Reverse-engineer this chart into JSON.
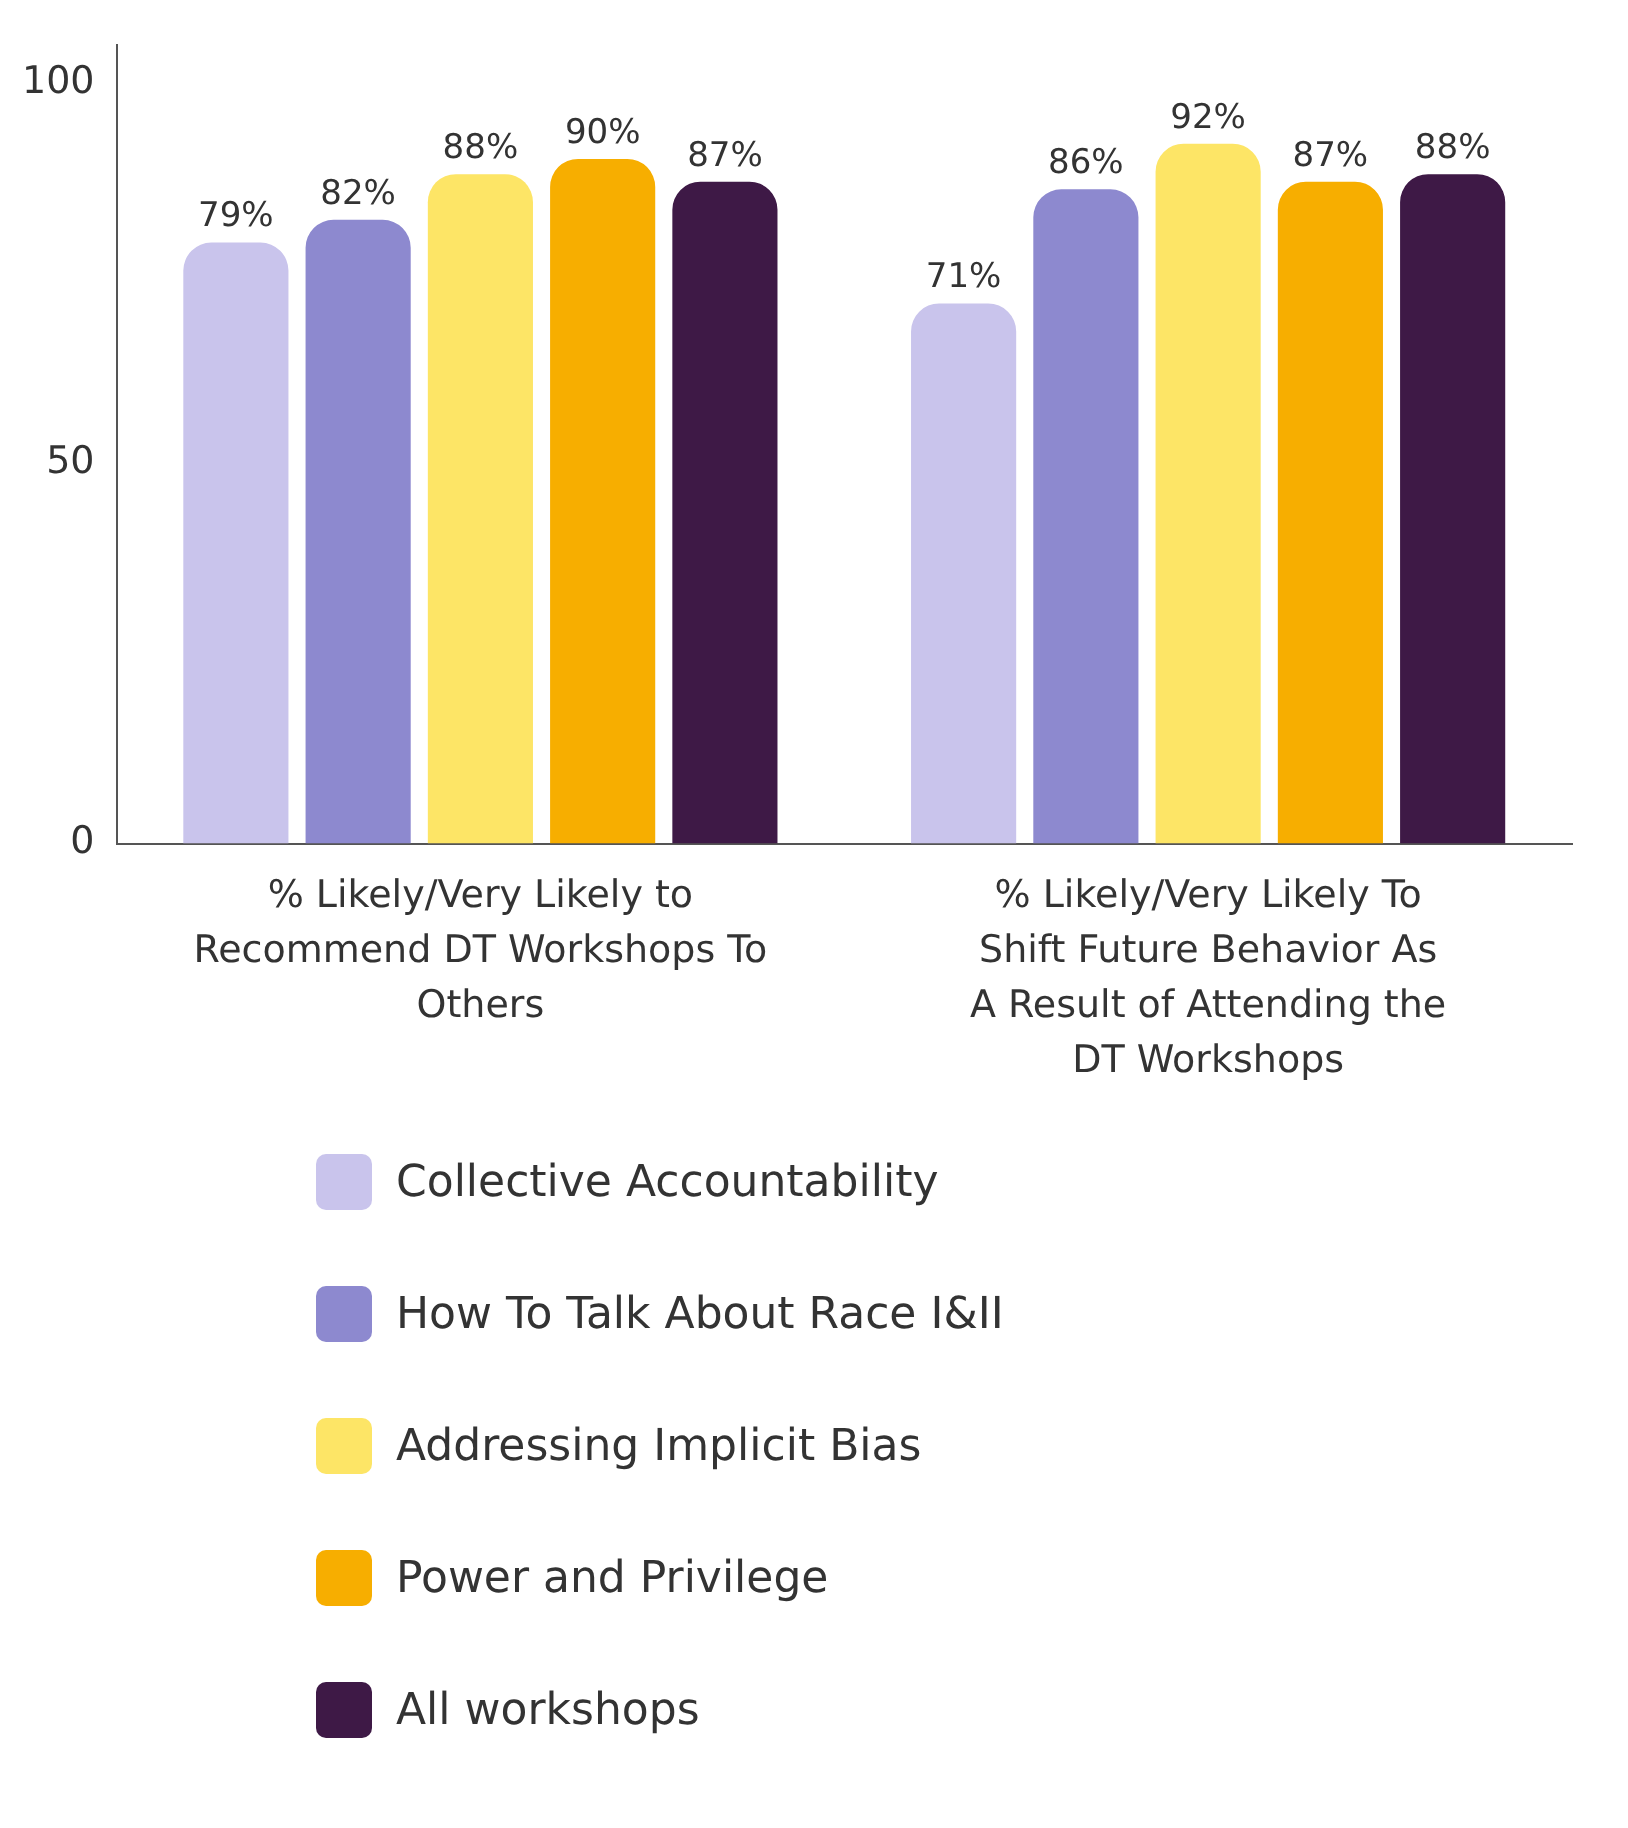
{
  "chart_data": {
    "type": "bar",
    "categories": [
      "% Likely/Very Likely to Recommend DT Workshops To Others",
      "% Likely/Very Likely To Shift Future Behavior As A Result of Attending the DT Workshops"
    ],
    "series": [
      {
        "name": "Collective Accountability",
        "color": "#c9c4ec",
        "values": [
          79,
          71
        ],
        "value_labels": [
          "79%",
          "71%"
        ]
      },
      {
        "name": "How To Talk About Race I&II",
        "color": "#8d89cf",
        "values": [
          82,
          86
        ],
        "value_labels": [
          "82%",
          "86%"
        ]
      },
      {
        "name": "Addressing Implicit Bias",
        "color": "#fde566",
        "values": [
          88,
          92
        ],
        "value_labels": [
          "88%",
          "92%"
        ]
      },
      {
        "name": "Power and Privilege",
        "color": "#f7ae00",
        "values": [
          90,
          87
        ],
        "value_labels": [
          "90%",
          "87%"
        ]
      },
      {
        "name": "All workshops",
        "color": "#3e1946",
        "values": [
          87,
          88
        ],
        "value_labels": [
          "87%",
          "88%"
        ]
      }
    ],
    "ylim": [
      0,
      105
    ],
    "yticks": [
      0,
      50,
      100
    ],
    "legend": "bottom"
  }
}
